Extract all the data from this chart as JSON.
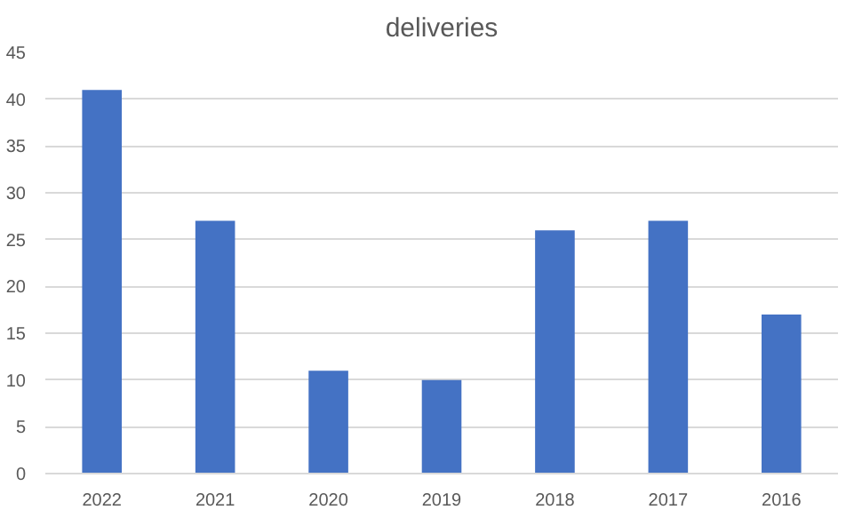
{
  "chart_data": {
    "type": "bar",
    "title": "deliveries",
    "categories": [
      "2022",
      "2021",
      "2020",
      "2019",
      "2018",
      "2017",
      "2016"
    ],
    "values": [
      41,
      27,
      11,
      10,
      26,
      27,
      17
    ],
    "color": "#4472c4",
    "ylim": [
      0,
      45
    ],
    "yticks": [
      0,
      5,
      10,
      15,
      20,
      25,
      30,
      35,
      40,
      45
    ],
    "grid": "y"
  }
}
